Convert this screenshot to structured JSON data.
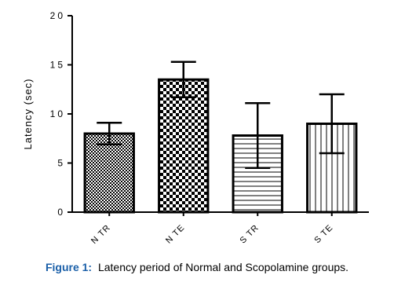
{
  "chart_data": {
    "type": "bar",
    "y_label": "Latency (sec)",
    "categories": [
      "N TR",
      "N TE",
      "S TR",
      "S TE"
    ],
    "values": [
      8.0,
      13.5,
      7.8,
      9.0
    ],
    "errors": [
      1.1,
      1.8,
      3.3,
      3.0
    ],
    "patterns": [
      "fine-check",
      "check",
      "hlines",
      "vlines"
    ],
    "color": "#000000",
    "ylim": [
      0,
      20
    ],
    "yticks": [
      0,
      5,
      10,
      15,
      20
    ],
    "caption_label": "Figure 1:",
    "caption_text": "Latency period of Normal and Scopolamine groups."
  }
}
